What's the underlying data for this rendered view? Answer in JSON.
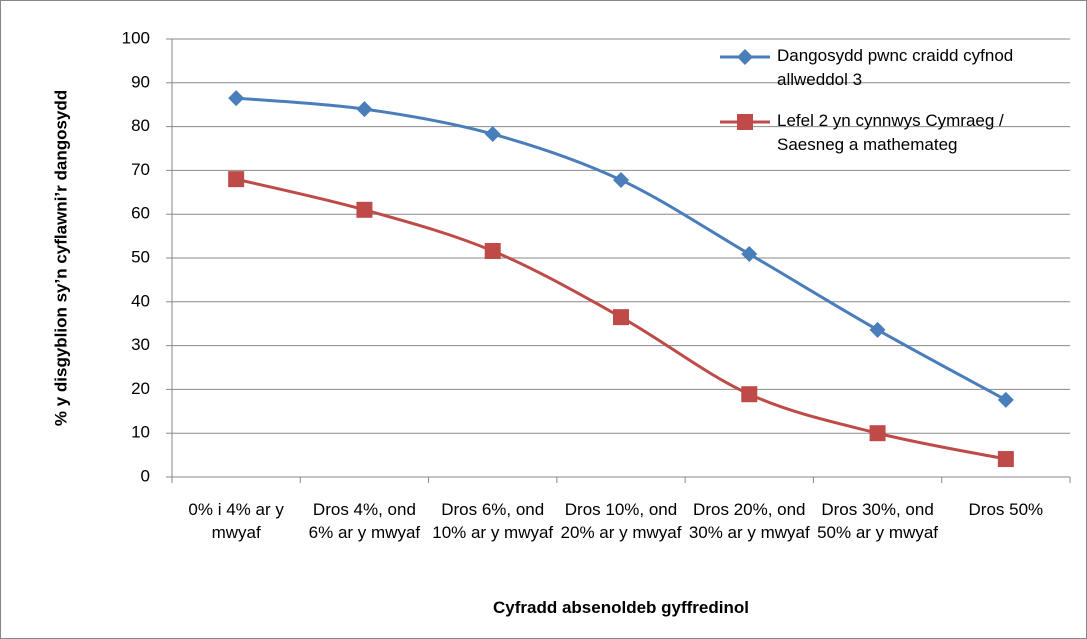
{
  "chart_data": {
    "type": "line",
    "x_label": "Cyfradd absenoldeb gyffredinol",
    "y_label": "% y disgyblion sy’n cyflawni’r dangosydd",
    "categories": [
      "0% i 4% ar y mwyaf",
      "Dros 4%, ond 6% ar y mwyaf",
      "Dros 6%, ond 10% ar y mwyaf",
      "Dros 10%, ond 20% ar y mwyaf",
      "Dros 20%, ond 30% ar y mwyaf",
      "Dros 30%, ond 50% ar y mwyaf",
      "Dros 50%"
    ],
    "series": [
      {
        "name": "Dangosydd pwnc craidd cyfnod allweddol 3",
        "color": "#4a7ebb",
        "marker": "diamond",
        "values": [
          86.5,
          84.0,
          78.3,
          67.8,
          50.9,
          33.6,
          17.6
        ]
      },
      {
        "name": "Lefel 2 yn cynnwys Cymraeg / Saesneg a mathemateg",
        "color": "#be4b48",
        "marker": "square",
        "values": [
          68.0,
          61.0,
          51.6,
          36.5,
          18.9,
          10.0,
          4.1
        ]
      }
    ],
    "ylim": [
      0,
      100
    ],
    "yticks": [
      0,
      10,
      20,
      30,
      40,
      50,
      60,
      70,
      80,
      90,
      100
    ],
    "grid": true
  }
}
